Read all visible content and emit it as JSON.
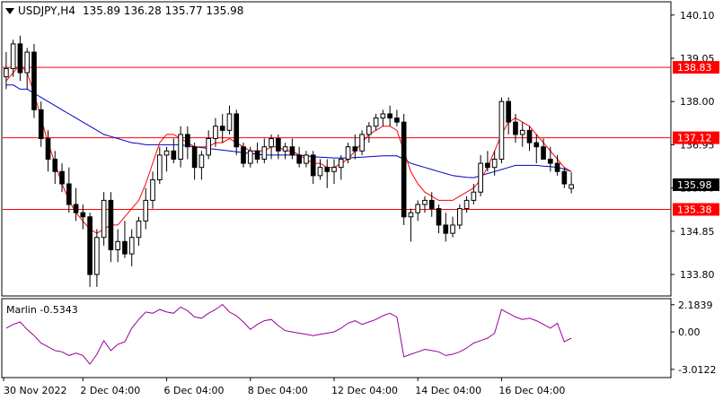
{
  "header": {
    "symbol_tf": "USDJPY,H4",
    "ohlc": "135.89 136.28 135.77 135.98",
    "menu_icon": "triangle-down-icon"
  },
  "price_axis": {
    "ticks": [
      "140.10",
      "139.05",
      "138.00",
      "136.95",
      "135.90",
      "134.85",
      "133.80"
    ]
  },
  "levels": [
    {
      "value": 138.83,
      "label": "138.83",
      "color": "#ff0000"
    },
    {
      "value": 137.12,
      "label": "137.12",
      "color": "#ff0000"
    },
    {
      "value": 135.38,
      "label": "135.38",
      "color": "#ff0000"
    }
  ],
  "current_price": {
    "value": 135.98,
    "label": "135.98"
  },
  "indicator": {
    "name_value": "Marlin -0.5343",
    "ticks": [
      "2.1839",
      "0.00",
      "-3.0122"
    ],
    "color": "#990099"
  },
  "time_axis": {
    "labels": [
      "30 Nov 2022",
      "2 Dec 04:00",
      "6 Dec 04:00",
      "8 Dec 04:00",
      "12 Dec 04:00",
      "14 Dec 04:00",
      "16 Dec 04:00"
    ]
  },
  "colors": {
    "bull_candle": "#ffffff",
    "bear_candle": "#000000",
    "fast_ma": "#ff0000",
    "slow_ma": "#0000cc",
    "level_line": "#ff0000",
    "label_bg_level": "#ff0000",
    "label_bg_price": "#000000"
  },
  "chart_data": {
    "type": "candlestick",
    "symbol": "USDJPY",
    "timeframe": "H4",
    "candles": [
      [
        138.6,
        139.2,
        138.3,
        138.8
      ],
      [
        138.8,
        139.5,
        138.6,
        139.4
      ],
      [
        139.4,
        139.6,
        138.5,
        138.7
      ],
      [
        138.7,
        139.3,
        138.3,
        139.2
      ],
      [
        139.2,
        139.4,
        137.6,
        137.8
      ],
      [
        137.8,
        138.0,
        136.9,
        137.1
      ],
      [
        137.1,
        137.3,
        136.3,
        136.6
      ],
      [
        136.6,
        136.8,
        136.0,
        136.3
      ],
      [
        136.3,
        136.5,
        135.8,
        136.0
      ],
      [
        136.0,
        136.4,
        135.3,
        135.5
      ],
      [
        135.5,
        135.9,
        135.1,
        135.3
      ],
      [
        135.3,
        135.5,
        134.9,
        135.2
      ],
      [
        135.2,
        135.3,
        133.5,
        133.8
      ],
      [
        133.8,
        134.9,
        133.5,
        134.7
      ],
      [
        134.7,
        135.8,
        134.5,
        135.6
      ],
      [
        135.6,
        135.8,
        134.1,
        134.4
      ],
      [
        134.4,
        134.9,
        134.1,
        134.6
      ],
      [
        134.6,
        135.1,
        134.2,
        134.3
      ],
      [
        134.3,
        134.9,
        134.0,
        134.7
      ],
      [
        134.7,
        135.2,
        134.5,
        135.1
      ],
      [
        135.1,
        135.9,
        134.9,
        135.6
      ],
      [
        135.6,
        136.3,
        135.4,
        136.1
      ],
      [
        136.1,
        136.9,
        136.0,
        136.7
      ],
      [
        136.7,
        136.9,
        136.3,
        136.8
      ],
      [
        136.8,
        137.1,
        136.5,
        136.6
      ],
      [
        136.6,
        137.4,
        136.4,
        137.2
      ],
      [
        137.2,
        137.4,
        136.6,
        136.9
      ],
      [
        136.9,
        137.0,
        136.1,
        136.4
      ],
      [
        136.4,
        136.8,
        136.1,
        136.7
      ],
      [
        136.7,
        137.3,
        136.6,
        137.1
      ],
      [
        137.1,
        137.6,
        136.9,
        137.4
      ],
      [
        137.4,
        137.7,
        137.0,
        137.3
      ],
      [
        137.3,
        137.9,
        137.2,
        137.7
      ],
      [
        137.7,
        137.8,
        136.7,
        136.9
      ],
      [
        136.9,
        137.0,
        136.4,
        136.5
      ],
      [
        136.5,
        136.9,
        136.4,
        136.8
      ],
      [
        136.8,
        137.0,
        136.5,
        136.6
      ],
      [
        136.6,
        137.1,
        136.5,
        136.9
      ],
      [
        136.9,
        137.2,
        136.6,
        137.1
      ],
      [
        137.1,
        137.2,
        136.6,
        136.8
      ],
      [
        136.8,
        137.0,
        136.6,
        136.9
      ],
      [
        136.9,
        137.1,
        136.6,
        136.7
      ],
      [
        136.7,
        136.9,
        136.4,
        136.5
      ],
      [
        136.5,
        136.8,
        136.4,
        136.7
      ],
      [
        136.7,
        136.8,
        136.0,
        136.2
      ],
      [
        136.2,
        136.6,
        136.1,
        136.4
      ],
      [
        136.4,
        136.6,
        135.9,
        136.3
      ],
      [
        136.3,
        136.6,
        136.0,
        136.4
      ],
      [
        136.4,
        136.7,
        136.1,
        136.6
      ],
      [
        136.6,
        137.0,
        136.5,
        136.9
      ],
      [
        136.9,
        137.2,
        136.6,
        136.8
      ],
      [
        136.8,
        137.3,
        136.7,
        137.2
      ],
      [
        137.2,
        137.5,
        137.0,
        137.4
      ],
      [
        137.4,
        137.7,
        137.3,
        137.6
      ],
      [
        137.6,
        137.8,
        137.4,
        137.7
      ],
      [
        137.7,
        137.9,
        137.4,
        137.6
      ],
      [
        137.6,
        137.8,
        137.4,
        137.5
      ],
      [
        137.5,
        137.7,
        135.0,
        135.2
      ],
      [
        135.2,
        135.4,
        134.6,
        135.3
      ],
      [
        135.3,
        135.6,
        135.1,
        135.5
      ],
      [
        135.5,
        135.7,
        135.3,
        135.6
      ],
      [
        135.6,
        135.8,
        135.2,
        135.4
      ],
      [
        135.4,
        135.5,
        134.8,
        135.0
      ],
      [
        135.0,
        135.3,
        134.6,
        134.8
      ],
      [
        134.8,
        135.2,
        134.7,
        135.0
      ],
      [
        135.0,
        135.5,
        134.9,
        135.4
      ],
      [
        135.4,
        135.7,
        135.3,
        135.6
      ],
      [
        135.6,
        136.0,
        135.5,
        135.8
      ],
      [
        135.8,
        136.7,
        135.7,
        136.5
      ],
      [
        136.5,
        136.8,
        136.3,
        136.4
      ],
      [
        136.4,
        136.8,
        136.2,
        136.6
      ],
      [
        136.6,
        138.1,
        136.5,
        138.0
      ],
      [
        138.0,
        138.1,
        137.2,
        137.5
      ],
      [
        137.5,
        137.7,
        137.0,
        137.2
      ],
      [
        137.2,
        137.5,
        136.9,
        137.3
      ],
      [
        137.3,
        137.4,
        136.8,
        137.0
      ],
      [
        137.0,
        137.2,
        136.5,
        136.9
      ],
      [
        136.9,
        137.1,
        136.6,
        136.6
      ],
      [
        136.6,
        136.9,
        136.3,
        136.5
      ],
      [
        136.5,
        136.7,
        136.2,
        136.3
      ],
      [
        136.3,
        136.4,
        135.9,
        136.0
      ],
      [
        135.89,
        136.28,
        135.77,
        135.98
      ]
    ],
    "fast_ma": [
      138.5,
      138.7,
      138.9,
      138.7,
      138.2,
      137.6,
      137.0,
      136.5,
      136.0,
      135.6,
      135.3,
      135.1,
      134.9,
      134.8,
      134.9,
      135.0,
      135.0,
      135.2,
      135.4,
      135.6,
      136.0,
      136.5,
      137.0,
      137.2,
      137.2,
      137.1,
      137.0,
      136.9,
      136.9,
      136.9,
      137.0,
      137.0,
      137.1,
      137.0,
      136.9,
      136.8,
      136.8,
      136.8,
      136.9,
      136.9,
      136.8,
      136.8,
      136.7,
      136.6,
      136.5,
      136.5,
      136.4,
      136.4,
      136.5,
      136.6,
      136.8,
      137.0,
      137.2,
      137.3,
      137.4,
      137.4,
      137.3,
      136.8,
      136.3,
      136.0,
      135.8,
      135.7,
      135.6,
      135.6,
      135.6,
      135.7,
      135.8,
      135.9,
      136.1,
      136.4,
      136.8,
      137.2,
      137.5,
      137.6,
      137.5,
      137.4,
      137.2,
      137.0,
      136.8,
      136.6,
      136.4,
      136.3
    ],
    "slow_ma": [
      138.4,
      138.4,
      138.3,
      138.3,
      138.2,
      138.1,
      138.0,
      137.9,
      137.8,
      137.7,
      137.6,
      137.5,
      137.4,
      137.3,
      137.2,
      137.15,
      137.1,
      137.05,
      137.0,
      136.98,
      136.95,
      136.95,
      136.95,
      136.95,
      136.95,
      136.95,
      136.92,
      136.9,
      136.88,
      136.86,
      136.84,
      136.82,
      136.8,
      136.78,
      136.76,
      136.74,
      136.72,
      136.7,
      136.7,
      136.7,
      136.7,
      136.7,
      136.7,
      136.68,
      136.66,
      136.65,
      136.64,
      136.63,
      136.63,
      136.63,
      136.64,
      136.65,
      136.66,
      136.67,
      136.68,
      136.68,
      136.68,
      136.6,
      136.5,
      136.45,
      136.4,
      136.35,
      136.3,
      136.25,
      136.2,
      136.18,
      136.16,
      136.15,
      136.2,
      136.25,
      136.3,
      136.35,
      136.4,
      136.45,
      136.45,
      136.45,
      136.45,
      136.43,
      136.42,
      136.4,
      136.36,
      136.3
    ],
    "indicator_values": [
      0.3,
      0.6,
      0.8,
      0.2,
      -0.3,
      -0.9,
      -1.2,
      -1.5,
      -1.6,
      -1.9,
      -1.7,
      -1.9,
      -2.6,
      -1.8,
      -0.7,
      -1.5,
      -1.0,
      -0.8,
      0.3,
      1.0,
      1.6,
      1.5,
      1.8,
      1.6,
      1.5,
      2.0,
      1.7,
      1.2,
      1.1,
      1.5,
      1.8,
      2.2,
      1.6,
      1.3,
      0.8,
      0.2,
      0.6,
      0.9,
      1.0,
      0.5,
      0.1,
      0.0,
      -0.1,
      -0.2,
      -0.3,
      -0.2,
      -0.1,
      0.0,
      0.3,
      0.7,
      0.9,
      0.6,
      0.8,
      1.0,
      1.3,
      1.5,
      1.2,
      -2.0,
      -1.8,
      -1.6,
      -1.4,
      -1.5,
      -1.6,
      -1.9,
      -1.8,
      -1.6,
      -1.3,
      -0.9,
      -0.7,
      -0.5,
      -0.1,
      1.8,
      1.5,
      1.2,
      1.0,
      1.1,
      0.9,
      0.6,
      0.3,
      0.7,
      -0.8,
      -0.5
    ],
    "y_range": [
      133.3,
      140.4
    ],
    "indicator_range": [
      -3.6,
      2.6
    ],
    "x_labels": [
      "30 Nov 2022",
      "2 Dec 04:00",
      "6 Dec 04:00",
      "8 Dec 04:00",
      "12 Dec 04:00",
      "14 Dec 04:00",
      "16 Dec 04:00"
    ],
    "grid": false
  }
}
